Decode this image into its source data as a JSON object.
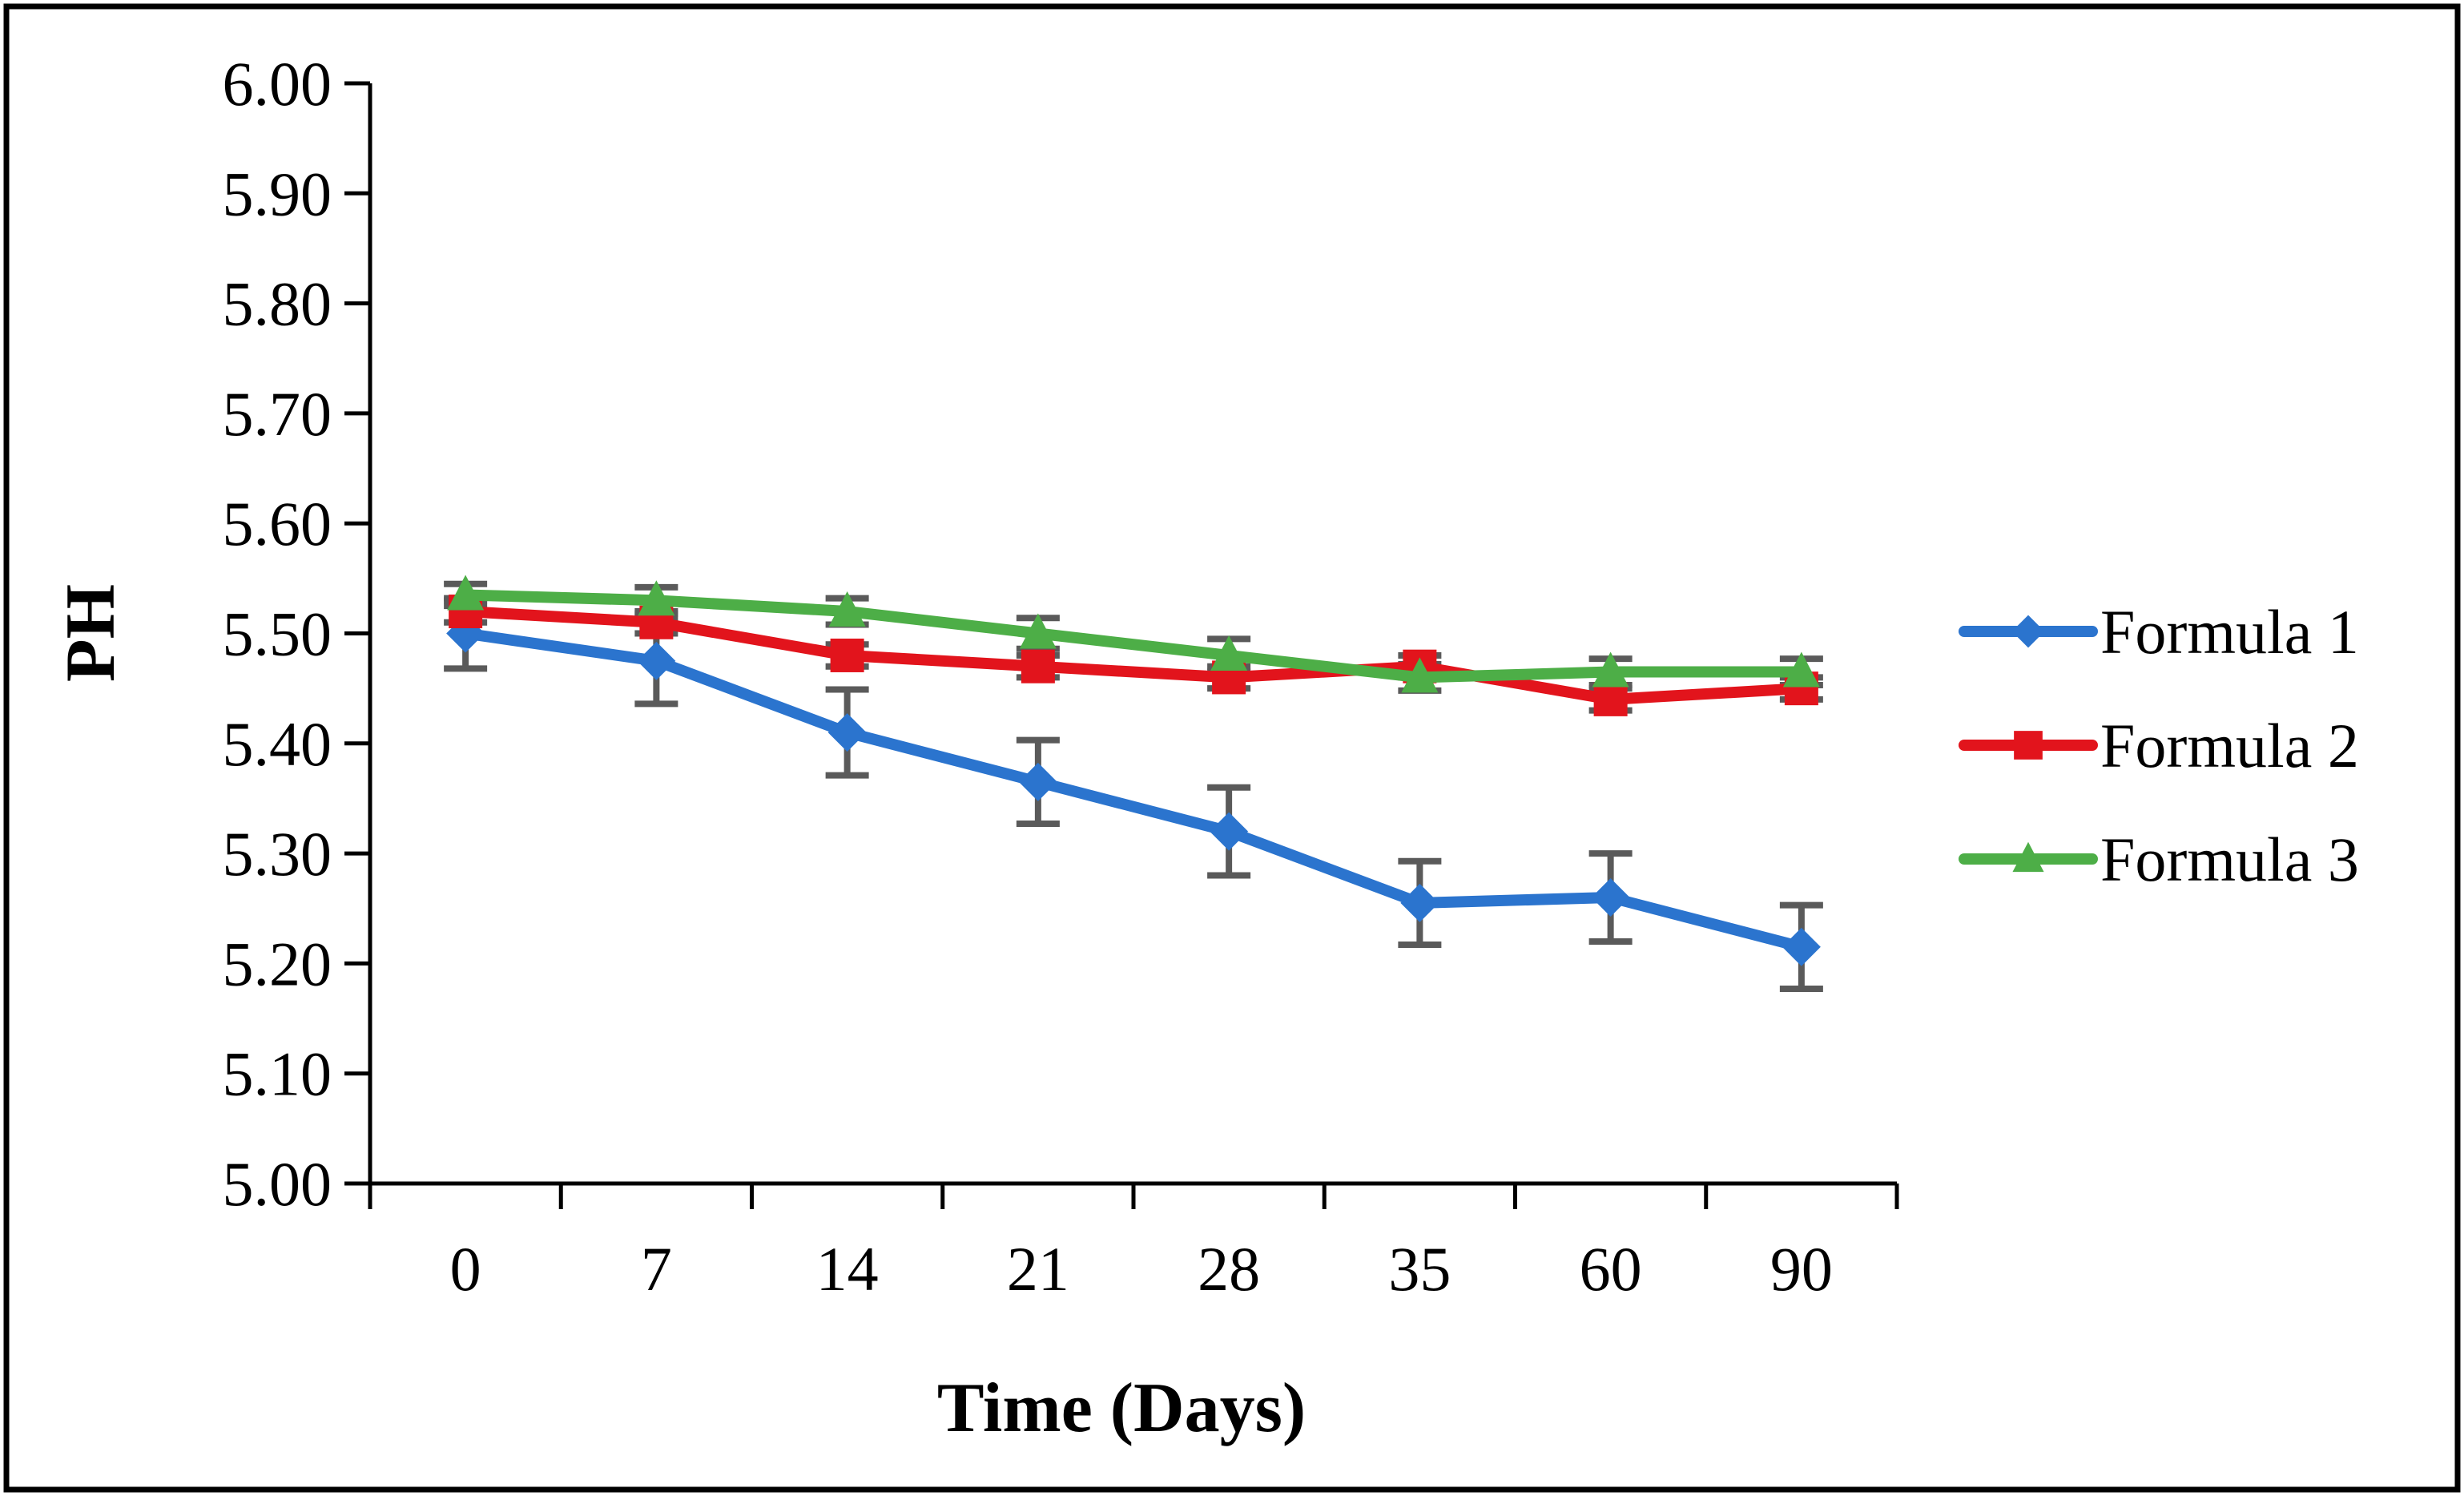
{
  "figure": {
    "background": "#ffffff",
    "border_color": "#000000"
  },
  "chart_data": {
    "type": "line",
    "title": "",
    "xlabel": "Time (Days)",
    "ylabel": "PH",
    "categories": [
      "0",
      "7",
      "14",
      "21",
      "28",
      "35",
      "60",
      "90"
    ],
    "ylim": [
      5.0,
      6.0
    ],
    "ytick_step": 0.1,
    "ytick_labels": [
      "6.00",
      "5.90",
      "5.80",
      "5.70",
      "5.60",
      "5.50",
      "5.40",
      "5.30",
      "5.20",
      "5.10",
      "5.00"
    ],
    "grid": "off",
    "legend_position": "right",
    "error_bar_color": "#5A5A5A",
    "axis_color": "#000000",
    "series": [
      {
        "name": "Formula 1",
        "color": "#2B74CE",
        "marker": "diamond",
        "values": [
          5.5,
          5.475,
          5.41,
          5.365,
          5.32,
          5.255,
          5.26,
          5.215
        ],
        "errors": [
          0.032,
          0.039,
          0.039,
          0.038,
          0.04,
          0.038,
          0.04,
          0.038
        ]
      },
      {
        "name": "Formula 2",
        "color": "#E2141C",
        "marker": "square",
        "values": [
          5.52,
          5.51,
          5.48,
          5.47,
          5.46,
          5.47,
          5.44,
          5.45
        ],
        "errors": [
          0.01,
          0.01,
          0.01,
          0.01,
          0.01,
          0.01,
          0.01,
          0.01
        ]
      },
      {
        "name": "Formula 3",
        "color": "#4DAE47",
        "marker": "triangle",
        "values": [
          5.535,
          5.53,
          5.52,
          5.5,
          5.48,
          5.46,
          5.465,
          5.465
        ],
        "errors": [
          0.01,
          0.012,
          0.012,
          0.014,
          0.015,
          0.012,
          0.012,
          0.012
        ]
      }
    ]
  }
}
